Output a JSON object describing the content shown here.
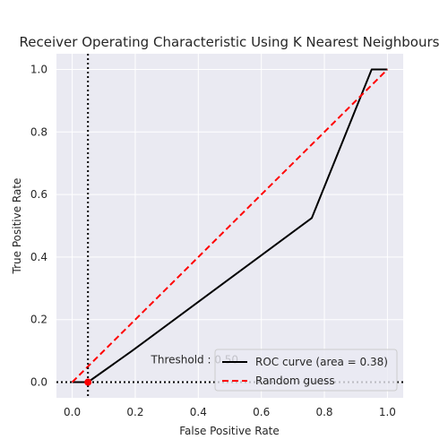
{
  "chart_data": {
    "type": "line",
    "title": "Receiver Operating Characteristic Using K Nearest Neighbours",
    "xlabel": "False Positive Rate",
    "ylabel": "True Positive Rate",
    "xlim": [
      -0.05,
      1.05
    ],
    "ylim": [
      -0.05,
      1.05
    ],
    "xticks": [
      "0.0",
      "0.2",
      "0.4",
      "0.6",
      "0.8",
      "1.0"
    ],
    "yticks": [
      "0.0",
      "0.2",
      "0.4",
      "0.6",
      "0.8",
      "1.0"
    ],
    "grid": true,
    "legend_position": "lower-right",
    "series": [
      {
        "name": "ROC curve (area = 0.38)",
        "color": "#000000",
        "style": "solid",
        "x": [
          0.0,
          0.05,
          0.19,
          0.76,
          0.95,
          1.0
        ],
        "y": [
          0.0,
          0.0,
          0.1,
          0.525,
          1.0,
          1.0
        ]
      },
      {
        "name": "Random guess",
        "color": "#ff0000",
        "style": "dashed",
        "x": [
          0.0,
          1.0
        ],
        "y": [
          0.0,
          1.0
        ]
      }
    ],
    "reference_lines": {
      "vertical_x": 0.05,
      "horizontal_y": 0.0,
      "style": "dotted",
      "color": "#000000"
    },
    "threshold_point": {
      "x": 0.05,
      "y": 0.0,
      "color": "#ff0000"
    },
    "annotation": {
      "text": "Threshold : 0.50",
      "x": 0.25,
      "y": 0.06
    }
  }
}
